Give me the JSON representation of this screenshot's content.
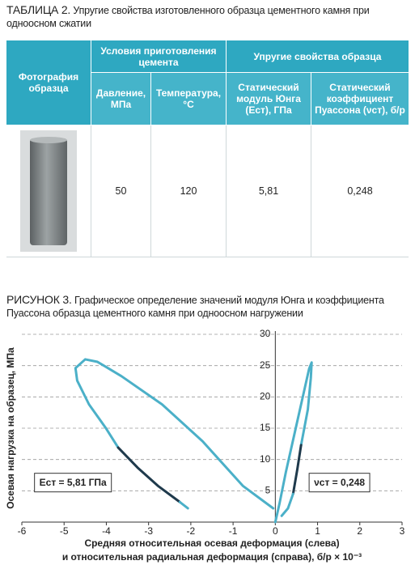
{
  "table": {
    "label": "ТАБЛИЦА 2.",
    "caption": "Упругие свойства изготовленного образца цементного камня при одноосном сжатии",
    "header": {
      "photo": "Фотография\nобразца",
      "group1": "Условия приготовления\nцемента",
      "group2": "Упругие свойства образца",
      "columns": [
        "Давление,\nМПа",
        "Температура,\n°С",
        "Статический\nмодуль Юнга\n(Eст), ГПа",
        "Статический\nкоэффициент\nПуассона (νст), б/р"
      ]
    },
    "rows": [
      [
        "50",
        "120",
        "5,81",
        "0,248"
      ]
    ]
  },
  "figure": {
    "label": "РИСУНОК 3.",
    "caption": "Графическое определение значений модуля Юнга и коэффициента Пуассона образца цементного камня при одноосном нагружении"
  },
  "chart_data": {
    "type": "line",
    "ylabel": "Осевая нагрузка на образец, МПа",
    "xlabel": [
      "Средняя относительная осевая деформация (слева)",
      "и относительная радиальная деформация (справа), б/р × 10⁻³"
    ],
    "xlim": [
      -6,
      3
    ],
    "xticks": [
      -6,
      -5,
      -4,
      -3,
      -2,
      -1,
      0,
      1,
      2,
      3
    ],
    "ylim": [
      0,
      30
    ],
    "yticks": [
      5,
      10,
      15,
      20,
      25,
      30
    ],
    "grid": true,
    "series": [
      {
        "color": "#4bb0c8",
        "x": [
          -0.05,
          -0.77,
          -1.72,
          -2.68,
          -3.64,
          -4.21,
          -4.5,
          -4.73,
          -4.69,
          -4.41,
          -4.02,
          -3.72
        ],
        "values": [
          2.2,
          5.8,
          12.9,
          18.8,
          23.3,
          25.6,
          26,
          24.6,
          22.6,
          18.8,
          15.1,
          11.9
        ]
      },
      {
        "color": "#1f3a4c",
        "x": [
          -3.72,
          -3.26,
          -2.78,
          -2.26
        ],
        "values": [
          11.9,
          8.7,
          5.8,
          3.2
        ]
      },
      {
        "color": "#4bb0c8",
        "x": [
          -2.26,
          -2.07
        ],
        "values": [
          3.2,
          2.2
        ]
      },
      {
        "color": "#4bb0c8",
        "x": [
          0,
          0.1,
          0.25,
          0.45,
          0.65,
          0.8,
          0.86,
          0.84,
          0.77,
          0.61
        ],
        "values": [
          0,
          3,
          8,
          14,
          20,
          24.5,
          25.5,
          23,
          18,
          12.3
        ]
      },
      {
        "color": "#1f3a4c",
        "x": [
          0.61,
          0.52,
          0.42
        ],
        "values": [
          12.3,
          8.4,
          4.5
        ]
      },
      {
        "color": "#4bb0c8",
        "x": [
          0.42,
          0.3,
          0.15
        ],
        "values": [
          4.5,
          2.2,
          1
        ]
      }
    ],
    "annotations": [
      {
        "text": "Eст = 5,81 ГПа",
        "x": -5.7,
        "y": 7.8
      },
      {
        "text": "νст = 0,248",
        "x": 0.8,
        "y": 7.8
      }
    ]
  }
}
